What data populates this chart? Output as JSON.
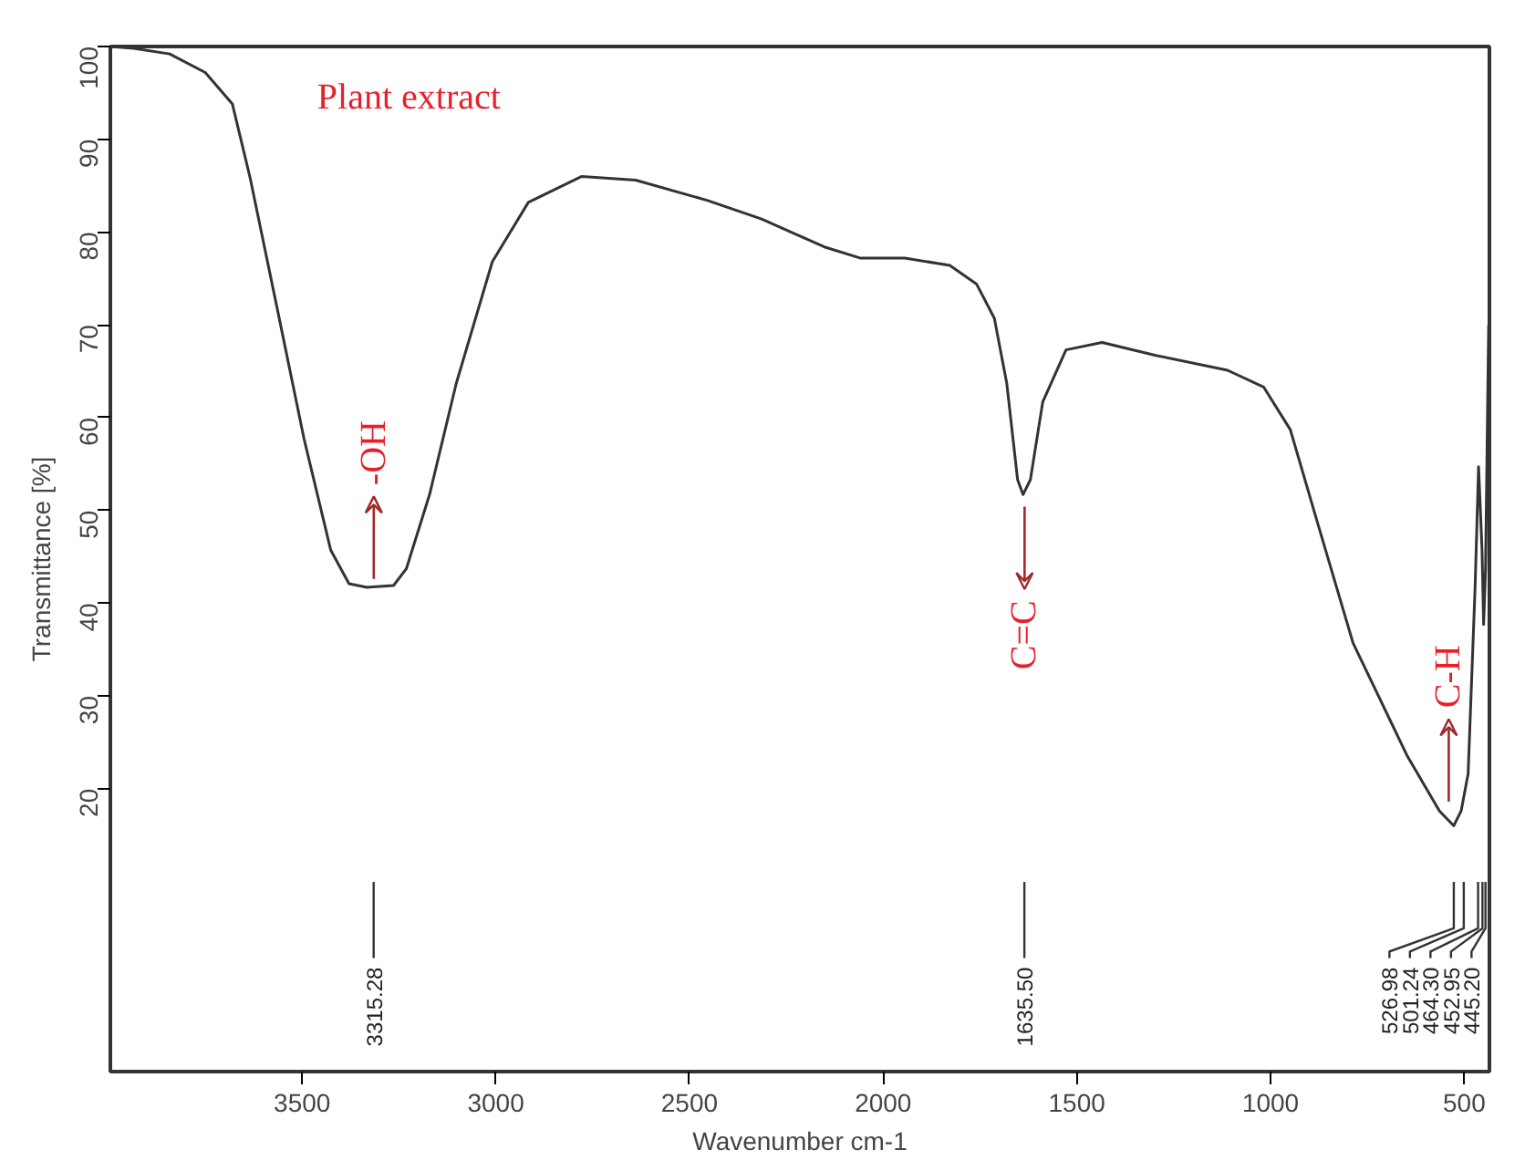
{
  "chart_data": {
    "type": "line",
    "xlabel": "Wavenumber cm-1",
    "ylabel": "Transmittance [%]",
    "x": [
      3995,
      3935,
      3842,
      3750,
      3680,
      3634,
      3564,
      3495,
      3426,
      3379,
      3333,
      3264,
      3231,
      3171,
      3102,
      3009,
      2916,
      2778,
      2639,
      2453,
      2314,
      2152,
      2060,
      1944,
      1828,
      1759,
      1713,
      1681,
      1653,
      1639,
      1620,
      1588,
      1528,
      1435,
      1296,
      1111,
      1018,
      949,
      879,
      787,
      648,
      564,
      527,
      508,
      490,
      472,
      463,
      454,
      450,
      445,
      437
    ],
    "series": [
      {
        "color": "#333333",
        "values": [
          100,
          99.8,
          99.2,
          97.2,
          93.8,
          85.8,
          71.7,
          57.7,
          45.7,
          42.1,
          41.7,
          41.9,
          43.7,
          51.7,
          63.7,
          76.8,
          83.2,
          86,
          85.6,
          83.4,
          81.4,
          78.4,
          77.2,
          77.2,
          76.4,
          74.4,
          70.7,
          63.7,
          53.3,
          51.7,
          53.3,
          61.7,
          67.3,
          68.1,
          66.7,
          65.1,
          63.3,
          58.7,
          48.7,
          35.7,
          23.6,
          17.6,
          16,
          17.6,
          21.6,
          41.7,
          54.7,
          45.7,
          37.7,
          43.7,
          70
        ]
      }
    ],
    "xlim": [
      3995,
      435
    ],
    "ylim": [
      -10.5,
      100
    ],
    "xticks": [
      3500,
      3000,
      2500,
      2000,
      1500,
      1000,
      500
    ],
    "yticks": [
      20,
      30,
      40,
      50,
      60,
      70,
      80,
      90,
      100
    ],
    "grid": false,
    "marker": "none",
    "line_style": "solid",
    "annotations": [
      "Plant extract",
      {
        "text": "-OH",
        "x": 3315,
        "y": 42
      },
      {
        "text": "C=C",
        "x": 1635,
        "y": 51
      },
      {
        "text": "C-H",
        "x": 540,
        "y": 18
      },
      "3315.28",
      "1635.50",
      "526.98",
      "501.24",
      "464.30",
      "452.95",
      "445.20"
    ]
  }
}
